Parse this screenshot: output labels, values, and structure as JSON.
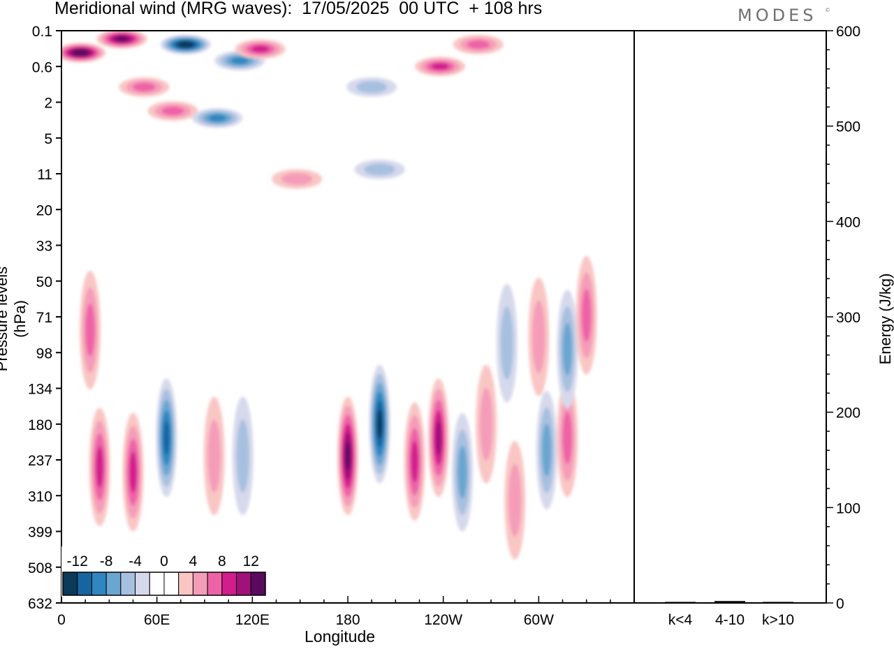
{
  "title": "Meridional wind (MRG waves):  17/05/2025  00 UTC  + 108 hrs",
  "logo": "MODES",
  "logo_mark": "©",
  "chart_data": [
    {
      "type": "heatmap",
      "title": "Meridional wind (MRG waves):  17/05/2025  00 UTC  + 108 hrs",
      "xlabel": "Longitude",
      "ylabel": "Pressure levels (hPa)",
      "x_ticks": [
        "0",
        "60E",
        "120E",
        "180",
        "120W",
        "60W"
      ],
      "y_ticks": [
        "0.1",
        "0.6",
        "2",
        "5",
        "11",
        "20",
        "33",
        "50",
        "71",
        "98",
        "134",
        "180",
        "237",
        "310",
        "399",
        "508",
        "632"
      ],
      "colorbar": {
        "labels": [
          "-12",
          "-8",
          "-4",
          "0",
          "4",
          "8",
          "12"
        ],
        "colors": [
          "#0b3a5a",
          "#1665a0",
          "#2f86c0",
          "#6aa6d0",
          "#a8c0e0",
          "#d6d9ec",
          "#ffffff",
          "#ffffff",
          "#f9c6c4",
          "#f59cb9",
          "#ee62a6",
          "#d21d8c",
          "#a0117a",
          "#5a0a5e"
        ]
      },
      "features": [
        {
          "lon": 12,
          "level": 0.3,
          "v": 14
        },
        {
          "lon": 38,
          "level": 0.15,
          "v": 12
        },
        {
          "lon": 78,
          "level": 0.2,
          "v": -13
        },
        {
          "lon": 112,
          "level": 0.45,
          "v": -7
        },
        {
          "lon": 125,
          "level": 0.25,
          "v": 8
        },
        {
          "lon": 52,
          "level": 1.2,
          "v": 6
        },
        {
          "lon": 70,
          "level": 2.5,
          "v": 6
        },
        {
          "lon": 98,
          "level": 3,
          "v": -7
        },
        {
          "lon": 195,
          "level": 1.2,
          "v": -4
        },
        {
          "lon": 238,
          "level": 0.6,
          "v": 7
        },
        {
          "lon": 262,
          "level": 0.2,
          "v": 5
        },
        {
          "lon": 18,
          "level": 80,
          "v": 6
        },
        {
          "lon": 24,
          "level": 250,
          "v": 7
        },
        {
          "lon": 45,
          "level": 260,
          "v": 8
        },
        {
          "lon": 66,
          "level": 200,
          "v": -10
        },
        {
          "lon": 96,
          "level": 230,
          "v": 4
        },
        {
          "lon": 114,
          "level": 230,
          "v": -4
        },
        {
          "lon": 180,
          "level": 230,
          "v": 12
        },
        {
          "lon": 200,
          "level": 180,
          "v": -11
        },
        {
          "lon": 222,
          "level": 240,
          "v": 7
        },
        {
          "lon": 237,
          "level": 200,
          "v": 9
        },
        {
          "lon": 252,
          "level": 260,
          "v": -6
        },
        {
          "lon": 267,
          "level": 180,
          "v": 4
        },
        {
          "lon": 285,
          "level": 320,
          "v": 4
        },
        {
          "lon": 305,
          "level": 220,
          "v": -5
        },
        {
          "lon": 318,
          "level": 200,
          "v": 6
        },
        {
          "lon": 280,
          "level": 90,
          "v": -4
        },
        {
          "lon": 300,
          "level": 85,
          "v": 4
        },
        {
          "lon": 318,
          "level": 95,
          "v": -5
        },
        {
          "lon": 330,
          "level": 70,
          "v": 5
        },
        {
          "lon": 148,
          "level": 12,
          "v": 4
        },
        {
          "lon": 200,
          "level": 10,
          "v": -3
        }
      ]
    },
    {
      "type": "bar",
      "ylabel": "Energy (J/kg)",
      "categories": [
        "k<4",
        "4-10",
        "k>10"
      ],
      "values": [
        0.5,
        2,
        0.5
      ],
      "ylim": [
        0,
        600
      ],
      "y_ticks": [
        "0",
        "100",
        "200",
        "300",
        "400",
        "500",
        "600"
      ]
    }
  ]
}
